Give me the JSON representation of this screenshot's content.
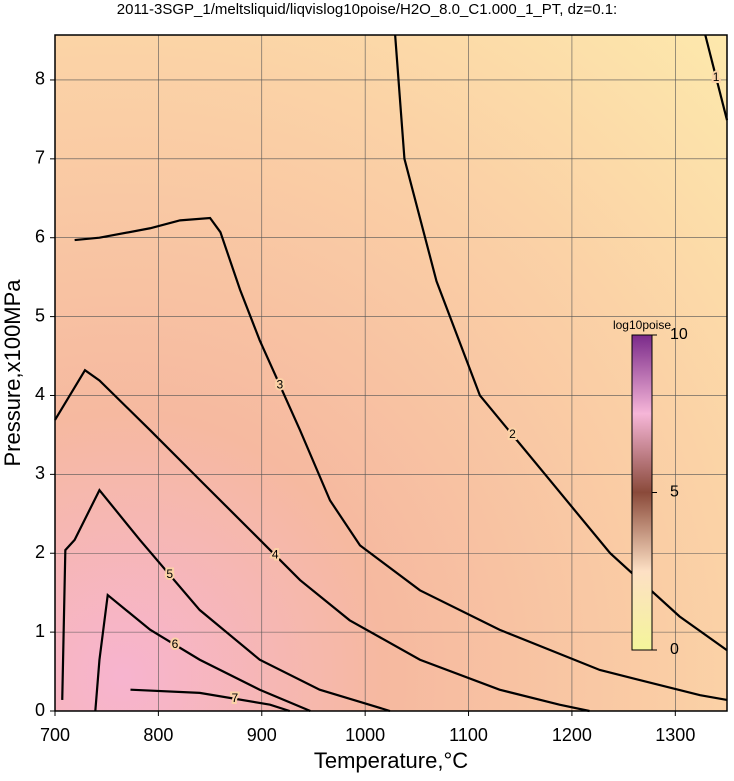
{
  "chart_data": {
    "type": "contour",
    "title": "2011-3SGP_1/meltsliquid/liqvislog10poise/H2O_8.0_C1.000_1_PT, dz=0.1:",
    "x_label": "Temperature,°C",
    "y_label": "Pressure,x100MPa",
    "xlim": [
      700,
      1350
    ],
    "ylim": [
      0,
      8.57
    ],
    "xticks": [
      700,
      800,
      900,
      1000,
      1100,
      1200,
      1300
    ],
    "yticks": [
      0,
      1,
      2,
      3,
      4,
      5,
      6,
      7,
      8
    ],
    "grid": true,
    "color": "#000000",
    "contours": [
      {
        "level": 1,
        "x": [
          1329,
          1350
        ],
        "y": [
          8.57,
          7.49
        ]
      },
      {
        "level": 2,
        "x": [
          1029,
          1038,
          1069,
          1111,
          1174,
          1237,
          1304,
          1350
        ],
        "y": [
          8.57,
          7,
          5.45,
          4,
          3,
          2,
          1.2,
          0.77
        ]
      },
      {
        "level": 3,
        "x": [
          719,
          743,
          792,
          821,
          850,
          860,
          879,
          898,
          937,
          966,
          995,
          1053,
          1130,
          1227,
          1324,
          1350
        ],
        "y": [
          5.97,
          6.0,
          6.12,
          6.22,
          6.25,
          6.07,
          5.34,
          4.7,
          3.56,
          2.67,
          2.1,
          1.53,
          1.03,
          0.52,
          0.2,
          0.14
        ]
      },
      {
        "level": 4,
        "x": [
          700,
          729,
          743,
          792,
          840,
          889,
          937,
          985,
          1053,
          1130,
          1188,
          1217
        ],
        "y": [
          3.69,
          4.32,
          4.19,
          3.56,
          2.93,
          2.29,
          1.66,
          1.15,
          0.65,
          0.27,
          0.08,
          0
        ]
      },
      {
        "level": 5,
        "x": [
          707,
          710,
          719,
          743,
          782,
          840,
          898,
          956,
          1004,
          1024
        ],
        "y": [
          0.14,
          2.04,
          2.17,
          2.8,
          2.17,
          1.28,
          0.65,
          0.27,
          0.08,
          0
        ]
      },
      {
        "level": 6,
        "x": [
          739,
          743,
          751,
          792,
          840,
          898,
          947
        ],
        "y": [
          0,
          0.65,
          1.47,
          1.03,
          0.65,
          0.27,
          0
        ]
      },
      {
        "level": 7,
        "x": [
          773,
          840,
          908,
          927
        ],
        "y": [
          0.27,
          0.23,
          0.08,
          0
        ]
      }
    ],
    "colorbar": {
      "label": "log10poise",
      "lim": [
        0,
        10
      ],
      "ticks": [
        0,
        5,
        10
      ]
    }
  }
}
